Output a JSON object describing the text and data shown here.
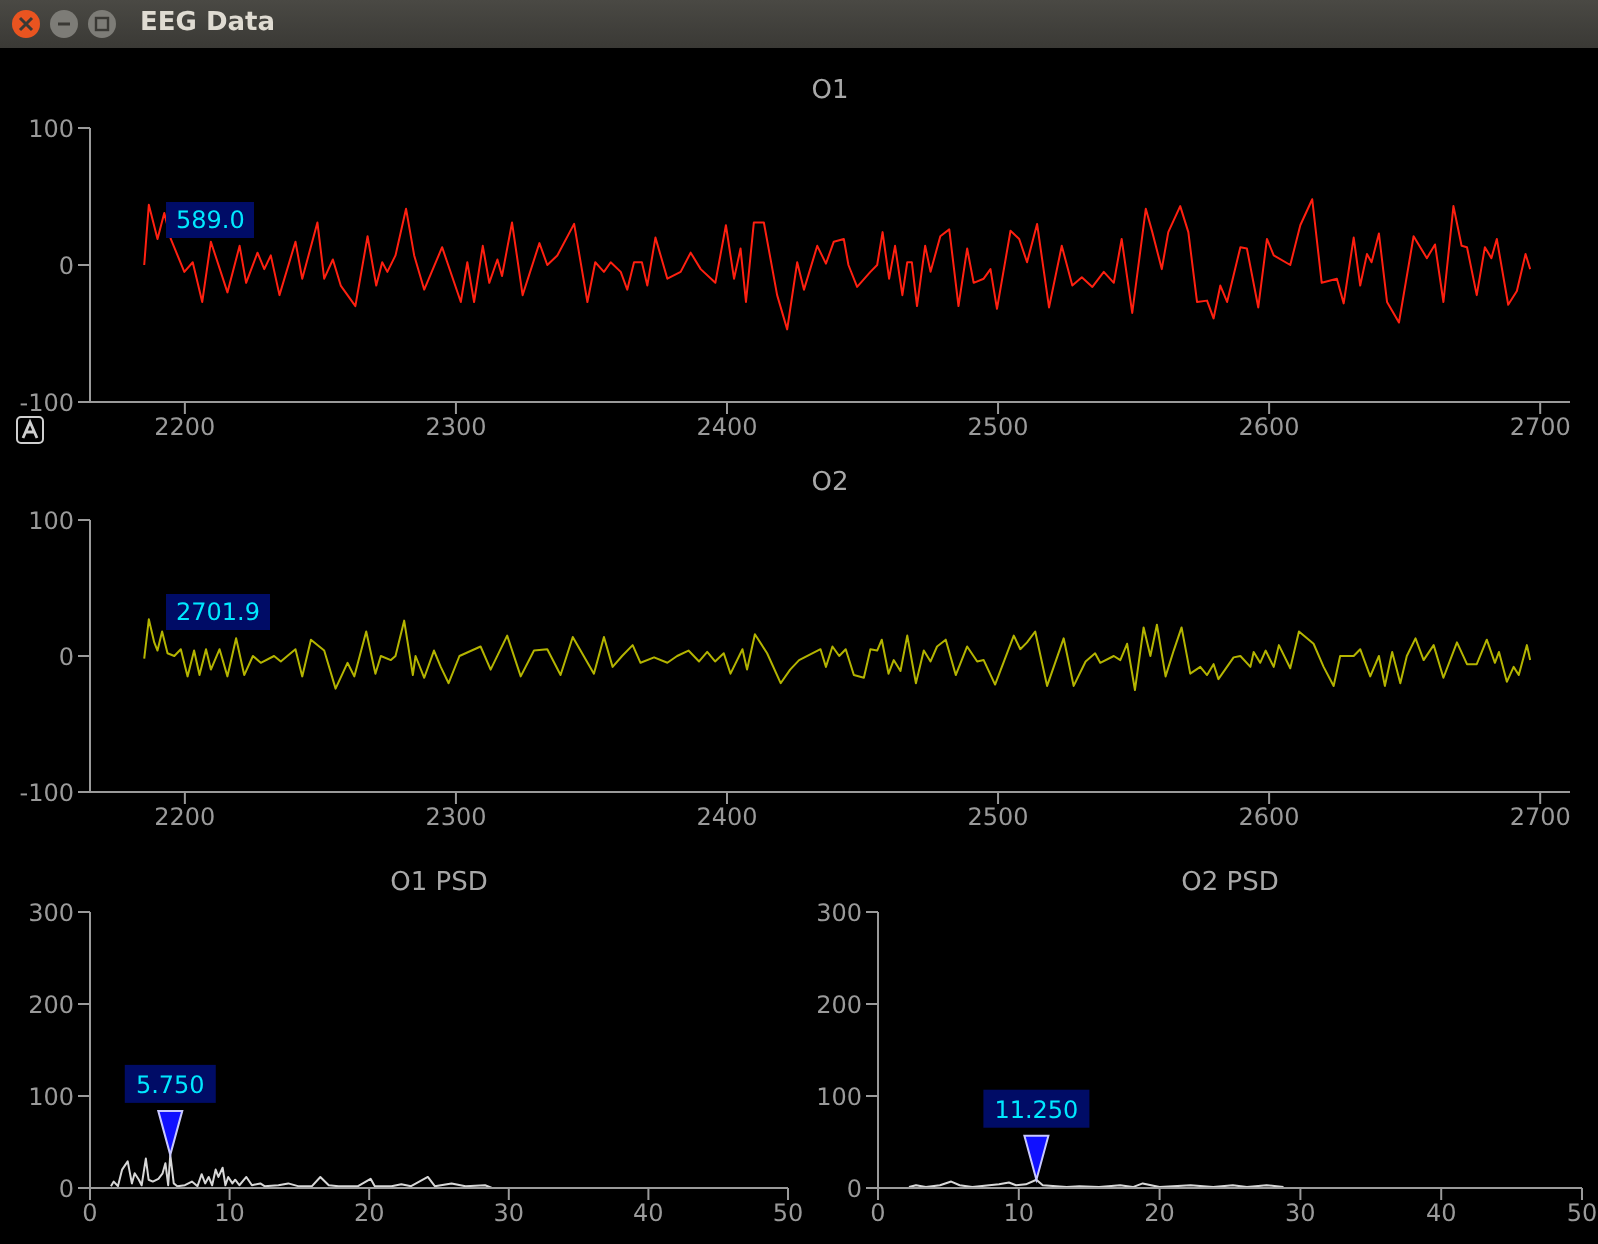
{
  "chart_data": [
    {
      "type": "line",
      "title": "O1",
      "annotations": [
        "EEG Data",
        "589.0"
      ],
      "xlim": [
        2165,
        2711
      ],
      "xticks": [
        2200,
        2300,
        2400,
        2500,
        2600,
        2700
      ],
      "ylim": [
        -100,
        100
      ],
      "yticks": [
        -100,
        0,
        100
      ],
      "marker": "none",
      "line_style": "solid",
      "series": [
        {
          "color": "#ff2010",
          "x": [
            2185,
            2186.7,
            2189.9,
            2192.4,
            2194.8,
            2199.8,
            2202.9,
            2206.4,
            2209.6,
            2215.7,
            2220.2,
            2222.6,
            2226.8,
            2229.3,
            2231.7,
            2234.9,
            2240.8,
            2243.3,
            2248.9,
            2251.4,
            2254.6,
            2257.5,
            2262.9,
            2267.4,
            2270.6,
            2272.8,
            2274.7,
            2277.7,
            2281.6,
            2284.6,
            2288.3,
            2294.9,
            2301.8,
            2304.2,
            2306.7,
            2309.9,
            2312.3,
            2315.3,
            2317,
            2320.7,
            2324.6,
            2330.8,
            2333.7,
            2337.4,
            2343.6,
            2348.5,
            2351.4,
            2354.6,
            2357.1,
            2360.8,
            2363.2,
            2365.7,
            2368.6,
            2370.6,
            2373.6,
            2378,
            2382.9,
            2386.6,
            2390.3,
            2395.7,
            2399.6,
            2402.6,
            2405,
            2407,
            2409.9,
            2413.6,
            2418.5,
            2422.2,
            2425.9,
            2428.4,
            2433.3,
            2436.5,
            2439.4,
            2443.1,
            2444.8,
            2448,
            2452.9,
            2455.4,
            2457.4,
            2459.8,
            2462,
            2464.7,
            2466.5,
            2468.2,
            2470.1,
            2473.1,
            2475.1,
            2478.7,
            2482,
            2485.4,
            2488.6,
            2491,
            2494.7,
            2497.2,
            2499.6,
            2504.6,
            2507.8,
            2510.7,
            2514.4,
            2518.8,
            2523.5,
            2527.4,
            2530.9,
            2534.8,
            2539,
            2542.7,
            2545.6,
            2549.5,
            2554.5,
            2556.9,
            2560.4,
            2562.8,
            2567.2,
            2570.2,
            2573.4,
            2577.1,
            2579.5,
            2582,
            2584.5,
            2589.4,
            2591.8,
            2596,
            2599.2,
            2601.7,
            2607.8,
            2611.5,
            2615.9,
            2619.4,
            2625,
            2627.5,
            2631.2,
            2633.6,
            2636.1,
            2637.8,
            2640.5,
            2643.5,
            2647.9,
            2653.3,
            2658.2,
            2661.2,
            2664.3,
            2668,
            2671,
            2673,
            2676.6,
            2679.6,
            2682,
            2684,
            2688.2,
            2691.4,
            2694.6,
            2696.3
          ],
          "values": [
            0,
            44,
            19,
            38,
            19,
            -5,
            2,
            -27,
            17,
            -20,
            14,
            -13,
            9,
            -3,
            7,
            -22,
            17,
            -10,
            31,
            -10,
            4,
            -15,
            -30,
            21,
            -15,
            2,
            -5,
            7,
            41,
            7,
            -18,
            13,
            -27,
            2,
            -27,
            14,
            -13,
            4,
            -8,
            31,
            -22,
            16,
            0,
            7,
            30,
            -27,
            2,
            -5,
            2,
            -5,
            -18,
            2,
            2,
            -15,
            20,
            -10,
            -5,
            9,
            -3,
            -13,
            29,
            -10,
            12,
            -27,
            31,
            31,
            -22,
            -47,
            2,
            -18,
            14,
            1,
            17,
            19,
            0,
            -16,
            -5,
            0,
            24,
            -10,
            14,
            -22,
            2,
            2,
            -30,
            14,
            -5,
            21,
            26,
            -30,
            12,
            -13,
            -10,
            -3,
            -32,
            25,
            19,
            2,
            30,
            -31,
            14,
            -15,
            -9,
            -16,
            -5,
            -13,
            19,
            -35,
            41,
            24,
            -3,
            24,
            43,
            24,
            -27,
            -26,
            -39,
            -15,
            -27,
            13,
            12,
            -31,
            19,
            7,
            0,
            29,
            48,
            -13,
            -10,
            -28,
            20,
            -15,
            8,
            2,
            23,
            -27,
            -42,
            21,
            5,
            15,
            -27,
            43,
            14,
            13,
            -22,
            13,
            5,
            19,
            -29,
            -19,
            8,
            -3
          ]
        }
      ]
    },
    {
      "type": "line",
      "title": "O2",
      "annotations": [
        "2701.9"
      ],
      "xlim": [
        2165,
        2711
      ],
      "xticks": [
        2200,
        2300,
        2400,
        2500,
        2600,
        2700
      ],
      "ylim": [
        -100,
        100
      ],
      "yticks": [
        -100,
        0,
        100
      ],
      "marker": "none",
      "line_style": "solid",
      "series": [
        {
          "color": "#b4b400",
          "x": [
            2185,
            2186.7,
            2188.7,
            2189.9,
            2191.6,
            2193.6,
            2196.1,
            2198.5,
            2201,
            2203.4,
            2205.4,
            2207.8,
            2209.6,
            2212.8,
            2215.7,
            2218.9,
            2221.9,
            2225.1,
            2228,
            2232.9,
            2235.4,
            2237.8,
            2240.8,
            2243.3,
            2246.5,
            2251.4,
            2255.6,
            2260,
            2262.5,
            2266.9,
            2270.3,
            2272.3,
            2276,
            2277.7,
            2280.9,
            2284.1,
            2285.1,
            2288.3,
            2291.9,
            2294.4,
            2297.3,
            2301.3,
            2309.1,
            2312.8,
            2318.9,
            2323.9,
            2328.8,
            2333.7,
            2338.6,
            2343.1,
            2350.9,
            2354.6,
            2357.8,
            2361.3,
            2365.2,
            2368.1,
            2373.1,
            2378,
            2381.6,
            2385.8,
            2389.7,
            2392.7,
            2395.6,
            2398.8,
            2401.3,
            2405.7,
            2407.4,
            2410.3,
            2414.8,
            2419.8,
            2423.3,
            2426.6,
            2434.5,
            2436.5,
            2438.9,
            2441.4,
            2443.8,
            2446.8,
            2450.5,
            2452.9,
            2455.4,
            2457.1,
            2459.6,
            2461.5,
            2464,
            2466.5,
            2469.7,
            2472.6,
            2475.1,
            2477.5,
            2480.7,
            2484.4,
            2488.6,
            2492.3,
            2494.7,
            2498.9,
            2505.8,
            2508.2,
            2510.7,
            2513.7,
            2518.1,
            2524.2,
            2527.9,
            2532.3,
            2535.8,
            2537.7,
            2542.7,
            2545.1,
            2547.6,
            2550.5,
            2553.7,
            2556.2,
            2558.6,
            2561.8,
            2564.8,
            2567.7,
            2570.9,
            2574.6,
            2577.1,
            2579.5,
            2581.3,
            2586.9,
            2589.4,
            2593.1,
            2594.3,
            2596.7,
            2598.7,
            2601.7,
            2603.6,
            2607.8,
            2611,
            2616.4,
            2620.1,
            2623.8,
            2626.2,
            2631.2,
            2633.6,
            2637.3,
            2640.5,
            2642.7,
            2645.4,
            2648.4,
            2650.8,
            2654,
            2657,
            2660.7,
            2664.3,
            2669.3,
            2673,
            2676.6,
            2680.3,
            2683.3,
            2684.8,
            2687.7,
            2690.2,
            2692.1,
            2695.1,
            2696.3
          ],
          "values": [
            -2,
            27,
            10,
            4,
            18,
            2,
            0,
            5,
            -15,
            4,
            -14,
            5,
            -10,
            5,
            -15,
            13,
            -14,
            0,
            -5,
            0,
            -4,
            0,
            5,
            -15,
            12,
            4,
            -24,
            -5,
            -15,
            18,
            -13,
            0,
            -3,
            0,
            26,
            -14,
            0,
            -16,
            4,
            -8,
            -20,
            0,
            7,
            -10,
            15,
            -15,
            4,
            5,
            -14,
            14,
            -13,
            14,
            -8,
            0,
            8,
            -5,
            -1,
            -5,
            0,
            4,
            -4,
            3,
            -4,
            2,
            -13,
            5,
            -10,
            16,
            2,
            -20,
            -10,
            -3,
            5,
            -8,
            7,
            0,
            5,
            -14,
            -16,
            5,
            4,
            12,
            -13,
            -3,
            -11,
            15,
            -20,
            4,
            -4,
            7,
            12,
            -14,
            7,
            -4,
            -3,
            -21,
            15,
            5,
            10,
            18,
            -22,
            13,
            -22,
            -4,
            2,
            -5,
            0,
            -3,
            9,
            -25,
            21,
            0,
            23,
            -15,
            4,
            21,
            -13,
            -8,
            -14,
            -6,
            -17,
            -1,
            0,
            -8,
            3,
            -5,
            4,
            -8,
            8,
            -9,
            18,
            9,
            -8,
            -22,
            0,
            0,
            5,
            -15,
            0,
            -22,
            3,
            -20,
            0,
            13,
            -3,
            8,
            -16,
            10,
            -6,
            -6,
            12,
            -5,
            3,
            -19,
            -8,
            -14,
            8,
            -3
          ]
        }
      ]
    },
    {
      "type": "line",
      "title": "O1 PSD",
      "annotations": [
        {
          "text": "5.750",
          "x": 5.75,
          "y": 36
        }
      ],
      "xlim": [
        0,
        50
      ],
      "xticks": [
        0,
        10,
        20,
        30,
        40,
        50
      ],
      "ylim": [
        0,
        300
      ],
      "yticks": [
        0,
        100,
        200,
        300
      ],
      "marker": "none",
      "line_style": "solid",
      "series": [
        {
          "color": "#d8d8d8",
          "x": [
            1.5,
            1.7,
            2,
            2.3,
            2.7,
            3,
            3.2,
            3.5,
            3.7,
            4,
            4.2,
            4.5,
            4.9,
            5.2,
            5.4,
            5.6,
            5.75,
            6,
            6.25,
            6.8,
            7.3,
            7.7,
            8,
            8.25,
            8.5,
            8.75,
            9,
            9.2,
            9.5,
            9.7,
            9.9,
            10.2,
            10.4,
            10.7,
            11.2,
            11.6,
            12.2,
            12.5,
            13.5,
            14.2,
            14.9,
            15.9,
            16.5,
            17.1,
            17.8,
            19.2,
            20.1,
            20.4,
            21.6,
            22.3,
            23,
            24.2,
            24.7,
            25.9,
            26.9,
            28.3,
            28.8
          ],
          "values": [
            2,
            7,
            2,
            20,
            29,
            5,
            16,
            9,
            3,
            32,
            9,
            7,
            10,
            16,
            27,
            3,
            36,
            5,
            2,
            3,
            7,
            2,
            15,
            5,
            12,
            3,
            20,
            12,
            22,
            3,
            12,
            5,
            9,
            3,
            12,
            3,
            5,
            2,
            3,
            5,
            2,
            2,
            12,
            3,
            2,
            2,
            10,
            2,
            2,
            4,
            2,
            12,
            2,
            5,
            2,
            3,
            0
          ]
        }
      ]
    },
    {
      "type": "line",
      "title": "O2 PSD",
      "annotations": [
        {
          "text": "11.250",
          "x": 11.25,
          "y": 9
        }
      ],
      "xlim": [
        0,
        50
      ],
      "xticks": [
        0,
        10,
        20,
        30,
        40,
        50
      ],
      "ylim": [
        0,
        300
      ],
      "yticks": [
        0,
        100,
        200,
        300
      ],
      "marker": "none",
      "line_style": "solid",
      "series": [
        {
          "color": "#d8d8d8",
          "x": [
            2.2,
            2.7,
            3.4,
            4.4,
            5.2,
            5.8,
            6.7,
            7.9,
            8.6,
            9.3,
            9.8,
            10.5,
            11.25,
            11.7,
            13.4,
            14.3,
            15.7,
            17.2,
            18.1,
            18.8,
            20,
            22.2,
            23.8,
            25.2,
            26.2,
            27.6,
            28.8
          ],
          "values": [
            1,
            3,
            1,
            3,
            7,
            3,
            1,
            3,
            4,
            6,
            3,
            4,
            9,
            3,
            1,
            2,
            1,
            3,
            1,
            5,
            1,
            3,
            1,
            3,
            1,
            3,
            1
          ]
        }
      ]
    }
  ]
}
